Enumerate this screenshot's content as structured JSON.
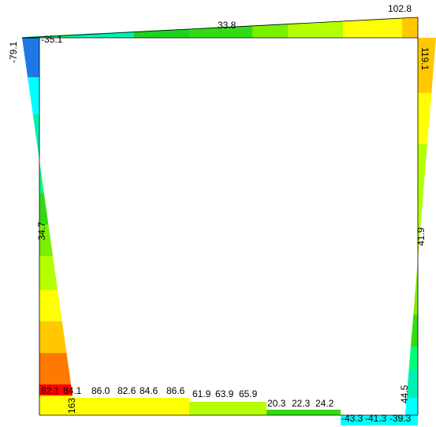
{
  "diagram": {
    "colors": {
      "blue": "#1e78e6",
      "cyan": "#00ffff",
      "aqua_green": "#00f0b4",
      "spring_green": "#00ff78",
      "green": "#1ed21e",
      "green2": "#32dc14",
      "lime": "#78f000",
      "yellow_green": "#b4ff00",
      "yellow": "#ffff00",
      "amber": "#ffc800",
      "orange": "#ff7800",
      "red": "#ff0000",
      "outline": "#000000"
    },
    "labels": {
      "top_left": "-35.1",
      "top_mid": "33.8",
      "top_right": "102.8",
      "left_top": "-79.1",
      "left_mid": "34.7",
      "left_bottom": "163",
      "right_top": "119.1",
      "right_mid": "41.9",
      "right_bottom": "44.5",
      "bottom": [
        {
          "text": "82.1",
          "name": "label-bottom-82-1"
        },
        {
          "text": "84.1",
          "name": "label-bottom-84-1"
        },
        {
          "text": "86.0",
          "name": "label-bottom-86-0"
        },
        {
          "text": "82.6",
          "name": "label-bottom-82-6"
        },
        {
          "text": "84.6",
          "name": "label-bottom-84-6"
        },
        {
          "text": "86.6",
          "name": "label-bottom-86-6"
        },
        {
          "text": "61.9",
          "name": "label-bottom-61-9"
        },
        {
          "text": "63.9",
          "name": "label-bottom-63-9"
        },
        {
          "text": "65.9",
          "name": "label-bottom-65-9"
        },
        {
          "text": "20.3",
          "name": "label-bottom-20-3"
        },
        {
          "text": "22.3",
          "name": "label-bottom-22-3"
        },
        {
          "text": "24.2",
          "name": "label-bottom-24-2"
        },
        {
          "text": "-43.3",
          "name": "label-bottom-neg-43-3"
        },
        {
          "text": "-41.3",
          "name": "label-bottom-neg-41-3"
        },
        {
          "text": "-39.3",
          "name": "label-bottom-neg-39-3"
        }
      ]
    }
  }
}
